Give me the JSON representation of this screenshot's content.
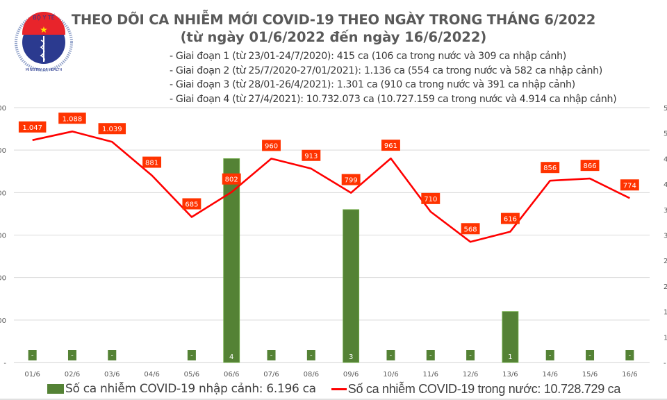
{
  "header": {
    "logo": {
      "top_text": "BỘ Y TẾ",
      "bottom_text": "MINISTRY OF HEALTH"
    },
    "title_line1": "THEO DÕI CA NHIỄM MỚI COVID-19 THEO NGÀY TRONG THÁNG 6/2022",
    "title_line2": "(từ ngày 01/6/2022 đến ngày 16/6/2022)",
    "notes": [
      "- Giai đoạn 1 (từ 23/01-24/7/2020): 415 ca (106 ca trong nước và 309 ca nhập cảnh)",
      "- Giai đoạn 2 (từ 25/7/2020-27/01/2021): 1.136 ca (554 ca trong nước và 582 ca nhập cảnh)",
      "- Giai đoạn 3 (từ 28/01-26/4/2021): 1.301 ca (910 ca trong nước và 391 ca nhập cảnh)",
      "- Giai đoạn 4 (từ 27/4/2021): 10.732.073 ca (10.727.159 ca trong nước và 4.914 ca nhập cảnh)"
    ]
  },
  "colors": {
    "bar": "#548235",
    "bar_edge": "#70ad47",
    "line": "#ff0000",
    "label_bg": "#ff3300",
    "grid": "#d9d9d9",
    "text": "#595959"
  },
  "chart_data": {
    "type": "bar+line",
    "title": "THEO DÕI CA NHIỄM MỚI COVID-19 THEO NGÀY TRONG THÁNG 6/2022",
    "subtitle": "(từ ngày 01/6/2022 đến ngày 16/6/2022)",
    "categories": [
      "01/6",
      "02/6",
      "03/6",
      "04/6",
      "05/6",
      "06/6",
      "07/6",
      "08/6",
      "09/6",
      "10/6",
      "11/6",
      "12/6",
      "13/6",
      "14/6",
      "15/6",
      "16/6"
    ],
    "series": [
      {
        "name": "Số ca nhiễm COVID-19 nhập cảnh: 6.196 ca",
        "type": "bar",
        "axis": "right",
        "values": [
          0,
          0,
          0,
          null,
          0,
          4,
          0,
          0,
          3,
          0,
          0,
          0,
          1,
          0,
          0,
          0
        ],
        "labels": [
          "-",
          "-",
          "-",
          "",
          "-",
          "4",
          "-",
          "-",
          "3",
          "-",
          "-",
          "-",
          "1",
          "-",
          "-",
          "-"
        ]
      },
      {
        "name": "Số ca nhiễm COVID-19 trong nước: 10.728.729 ca",
        "type": "line",
        "axis": "left",
        "values": [
          1047,
          1088,
          1039,
          881,
          685,
          802,
          960,
          913,
          799,
          961,
          710,
          568,
          616,
          856,
          866,
          774
        ],
        "labels": [
          "1.047",
          "1.088",
          "1.039",
          "881",
          "685",
          "802",
          "960",
          "913",
          "799",
          "961",
          "710",
          "568",
          "616",
          "856",
          "866",
          "774"
        ]
      }
    ],
    "left_axis": {
      "ylim": [
        0,
        1200
      ],
      "ticks": [
        0,
        200,
        400,
        600,
        800,
        1000,
        1200
      ],
      "tick_labels": [
        "-",
        "00",
        "00",
        "00",
        "00",
        "00",
        "00"
      ]
    },
    "right_axis": {
      "ylim": [
        0,
        5
      ],
      "ticks": [
        0,
        0.5,
        1,
        1.5,
        2,
        2.5,
        3,
        3.5,
        4,
        4.5,
        5
      ],
      "tick_labels": [
        "-",
        "1",
        "1",
        "2",
        "2",
        "3",
        "3",
        "4",
        "4",
        "5",
        "5"
      ]
    },
    "grid": true,
    "legend": "bottom"
  },
  "legend": {
    "bar_label": "Số ca nhiễm COVID-19 nhập cảnh: 6.196 ca",
    "line_label": "Số ca nhiễm COVID-19 trong nước: 10.728.729 ca"
  }
}
